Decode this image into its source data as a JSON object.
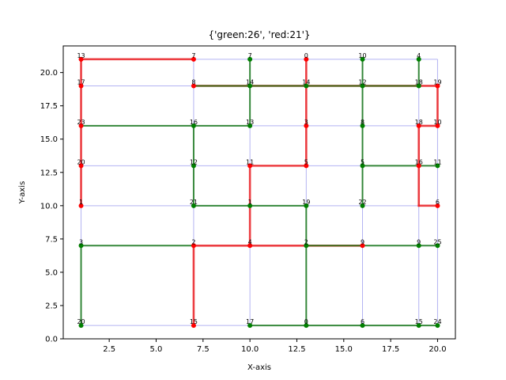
{
  "chart_data": {
    "type": "scatter",
    "title": "{'green:26', 'red:21'}",
    "xlabel": "X-axis",
    "ylabel": "Y-axis",
    "xlim": [
      0.05,
      20.95
    ],
    "ylim": [
      0,
      22.0
    ],
    "xticks": [
      2.5,
      5.0,
      7.5,
      10.0,
      12.5,
      15.0,
      17.5,
      20.0
    ],
    "xtick_labels": [
      "2.5",
      "5.0",
      "7.5",
      "10.0",
      "12.5",
      "15.0",
      "17.5",
      "20.0"
    ],
    "yticks": [
      0.0,
      2.5,
      5.0,
      7.5,
      10.0,
      12.5,
      15.0,
      17.5,
      20.0
    ],
    "ytick_labels": [
      "0.0",
      "2.5",
      "5.0",
      "7.5",
      "10.0",
      "12.5",
      "15.0",
      "17.5",
      "20.0"
    ],
    "grid": false,
    "colors": {
      "grid_edge": "#b3b3f2",
      "green": "#1a7a1a",
      "red": "#ee2222",
      "node_red": "#ff0000",
      "node_green": "#008000"
    },
    "grid_x": [
      1,
      7,
      10,
      13,
      16,
      19,
      20
    ],
    "grid_y": [
      1,
      7,
      10,
      13,
      16,
      19,
      21
    ],
    "nodes": [
      {
        "x": 1,
        "y": 21,
        "label": "13",
        "color": "red"
      },
      {
        "x": 7,
        "y": 21,
        "label": "7",
        "color": "red"
      },
      {
        "x": 10,
        "y": 21,
        "label": "7",
        "color": "green"
      },
      {
        "x": 13,
        "y": 21,
        "label": "0",
        "color": "red"
      },
      {
        "x": 16,
        "y": 21,
        "label": "10",
        "color": "green"
      },
      {
        "x": 19,
        "y": 21,
        "label": "4",
        "color": "green"
      },
      {
        "x": 1,
        "y": 19,
        "label": "17",
        "color": "red"
      },
      {
        "x": 7,
        "y": 19,
        "label": "8",
        "color": "red"
      },
      {
        "x": 10,
        "y": 19,
        "label": "14",
        "color": "green"
      },
      {
        "x": 13,
        "y": 19,
        "label": "14",
        "color": "green"
      },
      {
        "x": 16,
        "y": 19,
        "label": "12",
        "color": "green"
      },
      {
        "x": 19,
        "y": 19,
        "label": "18",
        "color": "green"
      },
      {
        "x": 20,
        "y": 19,
        "label": "19",
        "color": "red"
      },
      {
        "x": 1,
        "y": 16,
        "label": "23",
        "color": "red"
      },
      {
        "x": 7,
        "y": 16,
        "label": "16",
        "color": "green"
      },
      {
        "x": 10,
        "y": 16,
        "label": "13",
        "color": "green"
      },
      {
        "x": 13,
        "y": 16,
        "label": "3",
        "color": "red"
      },
      {
        "x": 16,
        "y": 16,
        "label": "8",
        "color": "green"
      },
      {
        "x": 19,
        "y": 16,
        "label": "18",
        "color": "red"
      },
      {
        "x": 20,
        "y": 16,
        "label": "10",
        "color": "red"
      },
      {
        "x": 1,
        "y": 13,
        "label": "20",
        "color": "red"
      },
      {
        "x": 7,
        "y": 13,
        "label": "12",
        "color": "green"
      },
      {
        "x": 10,
        "y": 13,
        "label": "11",
        "color": "red"
      },
      {
        "x": 13,
        "y": 13,
        "label": "5",
        "color": "red"
      },
      {
        "x": 16,
        "y": 13,
        "label": "5",
        "color": "green"
      },
      {
        "x": 19,
        "y": 13,
        "label": "16",
        "color": "red"
      },
      {
        "x": 20,
        "y": 13,
        "label": "11",
        "color": "green"
      },
      {
        "x": 1,
        "y": 10,
        "label": "1",
        "color": "red"
      },
      {
        "x": 7,
        "y": 10,
        "label": "21",
        "color": "green"
      },
      {
        "x": 10,
        "y": 10,
        "label": "1",
        "color": "green"
      },
      {
        "x": 13,
        "y": 10,
        "label": "19",
        "color": "green"
      },
      {
        "x": 16,
        "y": 10,
        "label": "22",
        "color": "green"
      },
      {
        "x": 20,
        "y": 10,
        "label": "6",
        "color": "red"
      },
      {
        "x": 1,
        "y": 7,
        "label": "3",
        "color": "green"
      },
      {
        "x": 7,
        "y": 7,
        "label": "2",
        "color": "red"
      },
      {
        "x": 10,
        "y": 7,
        "label": "4",
        "color": "red"
      },
      {
        "x": 13,
        "y": 7,
        "label": "2",
        "color": "green"
      },
      {
        "x": 16,
        "y": 7,
        "label": "9",
        "color": "red"
      },
      {
        "x": 19,
        "y": 7,
        "label": "9",
        "color": "green"
      },
      {
        "x": 20,
        "y": 7,
        "label": "25",
        "color": "green"
      },
      {
        "x": 1,
        "y": 1,
        "label": "20",
        "color": "green"
      },
      {
        "x": 7,
        "y": 1,
        "label": "15",
        "color": "red"
      },
      {
        "x": 10,
        "y": 1,
        "label": "17",
        "color": "green"
      },
      {
        "x": 13,
        "y": 1,
        "label": "0",
        "color": "green"
      },
      {
        "x": 16,
        "y": 1,
        "label": "6",
        "color": "green"
      },
      {
        "x": 19,
        "y": 1,
        "label": "15",
        "color": "green"
      },
      {
        "x": 20,
        "y": 1,
        "label": "24",
        "color": "green"
      }
    ],
    "series": [
      {
        "color": "red",
        "segments": [
          [
            [
              1,
              21
            ],
            [
              7,
              21
            ]
          ],
          [
            [
              1,
              21
            ],
            [
              1,
              10
            ]
          ],
          [
            [
              7,
              19
            ],
            [
              20,
              19
            ]
          ],
          [
            [
              13,
              21
            ],
            [
              13,
              13
            ]
          ],
          [
            [
              10,
              13
            ],
            [
              13,
              13
            ]
          ],
          [
            [
              10,
              13
            ],
            [
              10,
              7
            ]
          ],
          [
            [
              7,
              7
            ],
            [
              16,
              7
            ]
          ],
          [
            [
              7,
              7
            ],
            [
              7,
              1
            ]
          ],
          [
            [
              20,
              19
            ],
            [
              20,
              16
            ]
          ],
          [
            [
              19,
              16
            ],
            [
              20,
              16
            ]
          ],
          [
            [
              19,
              16
            ],
            [
              19,
              10
            ]
          ],
          [
            [
              19,
              10
            ],
            [
              20,
              10
            ]
          ]
        ]
      },
      {
        "color": "green",
        "segments": [
          [
            [
              10,
              21
            ],
            [
              10,
              16
            ]
          ],
          [
            [
              7,
              19
            ],
            [
              19,
              19
            ]
          ],
          [
            [
              16,
              21
            ],
            [
              16,
              10
            ]
          ],
          [
            [
              19,
              21
            ],
            [
              19,
              19
            ]
          ],
          [
            [
              1,
              16
            ],
            [
              10,
              16
            ]
          ],
          [
            [
              7,
              16
            ],
            [
              7,
              10
            ]
          ],
          [
            [
              16,
              13
            ],
            [
              20,
              13
            ]
          ],
          [
            [
              7,
              10
            ],
            [
              13,
              10
            ]
          ],
          [
            [
              13,
              10
            ],
            [
              13,
              1
            ]
          ],
          [
            [
              1,
              7
            ],
            [
              7,
              7
            ]
          ],
          [
            [
              1,
              7
            ],
            [
              1,
              1
            ]
          ],
          [
            [
              13,
              7
            ],
            [
              20,
              7
            ]
          ],
          [
            [
              10,
              1
            ],
            [
              20,
              1
            ]
          ]
        ]
      }
    ]
  }
}
